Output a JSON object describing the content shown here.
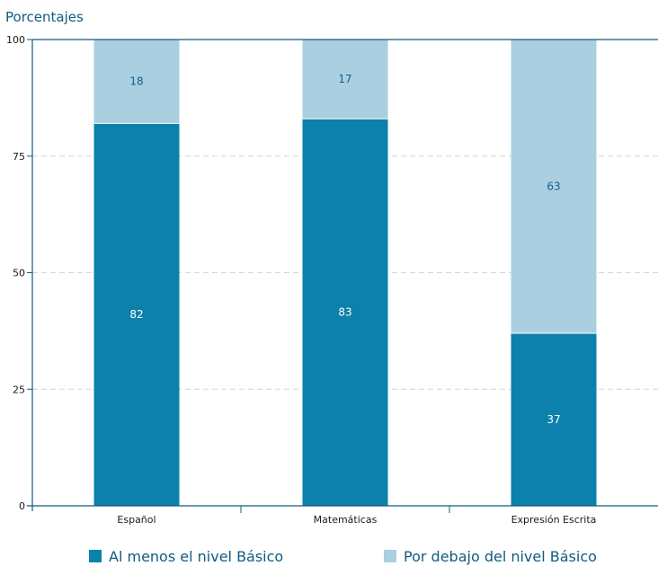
{
  "chart_data": {
    "type": "bar",
    "stacked": true,
    "title": "",
    "ylabel": "Porcentajes",
    "xlabel": "",
    "ylim": [
      0,
      100
    ],
    "yticks": [
      0,
      25,
      50,
      75,
      100
    ],
    "grid": "horizontal dashed",
    "legend_position": "bottom",
    "categories": [
      "Español",
      "Matemáticas",
      "Expresión Escrita"
    ],
    "series": [
      {
        "name": "Al menos el nivel Básico",
        "values": [
          82,
          83,
          37
        ],
        "color": "#0b81ab"
      },
      {
        "name": "Por debajo del nivel Básico",
        "values": [
          18,
          17,
          63
        ],
        "color": "#a9cfe0"
      }
    ]
  }
}
